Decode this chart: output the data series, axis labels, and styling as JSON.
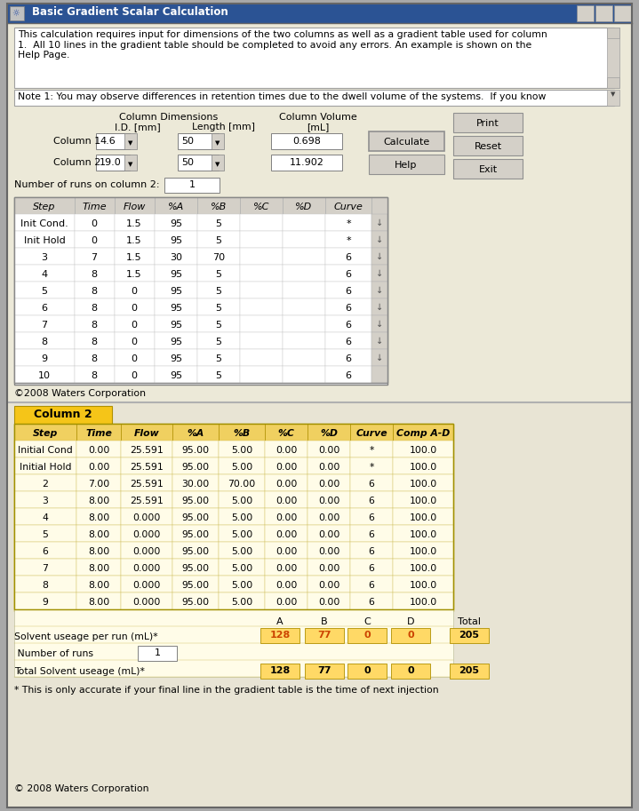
{
  "title": "Basic Gradient Scalar Calculation",
  "info_text": "This calculation requires input for dimensions of the two columns as well as a gradient table used for column\n1.  All 10 lines in the gradient table should be completed to avoid any errors. An example is shown on the\nHelp Page.",
  "note_text": "Note 1: You may observe differences in retention times due to the dwell volume of the systems.  If you know",
  "col_dim_label": "Column Dimensions",
  "col_vol_label": "Column Volume",
  "id_label": "I.D. [mm]",
  "length_label": "Length [mm]",
  "ml_label": "[mL]",
  "col1_label": "Column 1",
  "col2_label": "Column 2",
  "col1_id": "4.6",
  "col1_length": "50",
  "col1_vol": "0.698",
  "col2_id": "19.0",
  "col2_length": "50",
  "col2_vol": "11.902",
  "num_runs_label": "Number of runs on column 2:",
  "num_runs_val": "1",
  "btn_calculate": "Calculate",
  "btn_print": "Print",
  "btn_reset": "Reset",
  "btn_help": "Help",
  "btn_exit": "Exit",
  "top_table_headers": [
    "Step",
    "Time",
    "Flow",
    "%A",
    "%B",
    "%C",
    "%D",
    "Curve"
  ],
  "top_table_data": [
    [
      "Init Cond.",
      "0",
      "1.5",
      "95",
      "5",
      "",
      "",
      "*"
    ],
    [
      "Init Hold",
      "0",
      "1.5",
      "95",
      "5",
      "",
      "",
      "*"
    ],
    [
      "3",
      "7",
      "1.5",
      "30",
      "70",
      "",
      "",
      "6"
    ],
    [
      "4",
      "8",
      "1.5",
      "95",
      "5",
      "",
      "",
      "6"
    ],
    [
      "5",
      "8",
      "0",
      "95",
      "5",
      "",
      "",
      "6"
    ],
    [
      "6",
      "8",
      "0",
      "95",
      "5",
      "",
      "",
      "6"
    ],
    [
      "7",
      "8",
      "0",
      "95",
      "5",
      "",
      "",
      "6"
    ],
    [
      "8",
      "8",
      "0",
      "95",
      "5",
      "",
      "",
      "6"
    ],
    [
      "9",
      "8",
      "0",
      "95",
      "5",
      "",
      "",
      "6"
    ],
    [
      "10",
      "8",
      "0",
      "95",
      "5",
      "",
      "",
      "6"
    ]
  ],
  "copyright_top": "©2008 Waters Corporation",
  "col2_title": "Column 2",
  "bottom_table_headers": [
    "Step",
    "Time",
    "Flow",
    "%A",
    "%B",
    "%C",
    "%D",
    "Curve",
    "Comp A-D"
  ],
  "bottom_table_data": [
    [
      "Initial Cond",
      "0.00",
      "25.591",
      "95.00",
      "5.00",
      "0.00",
      "0.00",
      "*",
      "100.0"
    ],
    [
      "Initial Hold",
      "0.00",
      "25.591",
      "95.00",
      "5.00",
      "0.00",
      "0.00",
      "*",
      "100.0"
    ],
    [
      "2",
      "7.00",
      "25.591",
      "30.00",
      "70.00",
      "0.00",
      "0.00",
      "6",
      "100.0"
    ],
    [
      "3",
      "8.00",
      "25.591",
      "95.00",
      "5.00",
      "0.00",
      "0.00",
      "6",
      "100.0"
    ],
    [
      "4",
      "8.00",
      "0.000",
      "95.00",
      "5.00",
      "0.00",
      "0.00",
      "6",
      "100.0"
    ],
    [
      "5",
      "8.00",
      "0.000",
      "95.00",
      "5.00",
      "0.00",
      "0.00",
      "6",
      "100.0"
    ],
    [
      "6",
      "8.00",
      "0.000",
      "95.00",
      "5.00",
      "0.00",
      "0.00",
      "6",
      "100.0"
    ],
    [
      "7",
      "8.00",
      "0.000",
      "95.00",
      "5.00",
      "0.00",
      "0.00",
      "6",
      "100.0"
    ],
    [
      "8",
      "8.00",
      "0.000",
      "95.00",
      "5.00",
      "0.00",
      "0.00",
      "6",
      "100.0"
    ],
    [
      "9",
      "8.00",
      "0.000",
      "95.00",
      "5.00",
      "0.00",
      "0.00",
      "6",
      "100.0"
    ]
  ],
  "solvent_headers": [
    "A",
    "B",
    "C",
    "D",
    "Total"
  ],
  "solvent_per_run_label": "Solvent useage per run (mL)*",
  "solvent_per_run": [
    "128",
    "77",
    "0",
    "0",
    "205"
  ],
  "solvent_per_run_colors": [
    "#ff6600",
    "#ff6600",
    "#ff6600",
    "#ff6600",
    "#000000"
  ],
  "num_runs_bottom_label": " Number of runs",
  "num_runs_bottom": "1",
  "total_solvent_label": "Total Solvent useage (mL)*",
  "total_solvent": [
    "128",
    "77",
    "0",
    "0",
    "205"
  ],
  "footer_note": "* This is only accurate if your final line in the gradient table is the time of next injection",
  "copyright_bottom": "© 2008 Waters Corporation",
  "win_bg": "#ece9d8",
  "title_bar_color": "#2b5394",
  "table_bg": "#ffffff",
  "top_header_bg": "#d4d0c8",
  "orange_header_bg": "#f5c518",
  "bottom_row_bg": "#fffce8",
  "bottom_header_bg": "#f0d060",
  "sol_box_bg": "#ffd966",
  "outer_bg": "#a8a8a8"
}
